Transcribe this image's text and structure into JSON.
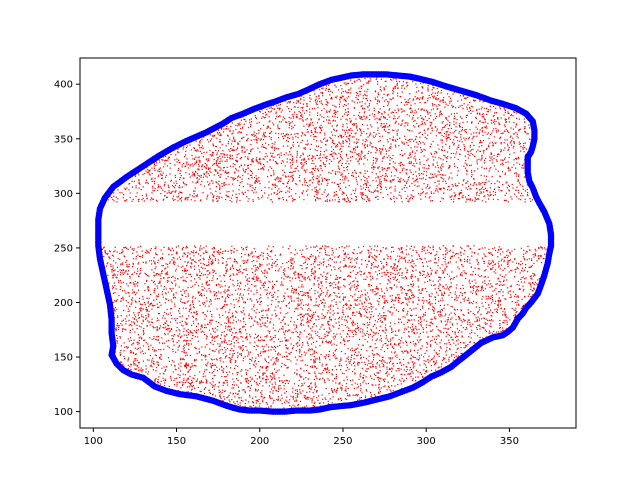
{
  "chart_data": {
    "type": "scatter",
    "title": "",
    "xlabel": "",
    "ylabel": "",
    "xlim": [
      92,
      390
    ],
    "ylim": [
      85,
      424
    ],
    "grid": false,
    "legend": "none",
    "x_ticks": [
      100,
      150,
      200,
      250,
      300,
      350
    ],
    "y_ticks": [
      100,
      150,
      200,
      250,
      300,
      350,
      400
    ],
    "x_tick_labels": [
      "100",
      "150",
      "200",
      "250",
      "300",
      "350"
    ],
    "y_tick_labels": [
      "100",
      "150",
      "200",
      "250",
      "300",
      "350",
      "400"
    ],
    "boundary_color": "#0000ff",
    "interior_color": "#ff0000",
    "empty_band_y": [
      252,
      292
    ],
    "boundary": [
      [
        112,
        160
      ],
      [
        111,
        152
      ],
      [
        114,
        144
      ],
      [
        118,
        138
      ],
      [
        123,
        134
      ],
      [
        130,
        131
      ],
      [
        137,
        123
      ],
      [
        144,
        119
      ],
      [
        152,
        116
      ],
      [
        162,
        114
      ],
      [
        167,
        112
      ],
      [
        172,
        110
      ],
      [
        179,
        106
      ],
      [
        183,
        104
      ],
      [
        188,
        102
      ],
      [
        194,
        101
      ],
      [
        200,
        101
      ],
      [
        208,
        100
      ],
      [
        215,
        100
      ],
      [
        222,
        101
      ],
      [
        230,
        101
      ],
      [
        236,
        102
      ],
      [
        242,
        104
      ],
      [
        248,
        105
      ],
      [
        255,
        106
      ],
      [
        262,
        108
      ],
      [
        270,
        111
      ],
      [
        278,
        114
      ],
      [
        285,
        118
      ],
      [
        292,
        122
      ],
      [
        298,
        127
      ],
      [
        303,
        132
      ],
      [
        309,
        136
      ],
      [
        315,
        141
      ],
      [
        319,
        146
      ],
      [
        324,
        152
      ],
      [
        333,
        163
      ],
      [
        340,
        168
      ],
      [
        346,
        170
      ],
      [
        349,
        173
      ],
      [
        352,
        177
      ],
      [
        355,
        185
      ],
      [
        358,
        190
      ],
      [
        360,
        195
      ],
      [
        363,
        200
      ],
      [
        367,
        208
      ],
      [
        369,
        216
      ],
      [
        371,
        225
      ],
      [
        373,
        236
      ],
      [
        374,
        245
      ],
      [
        375,
        252
      ],
      [
        375,
        262
      ],
      [
        374,
        272
      ],
      [
        371,
        283
      ],
      [
        368,
        291
      ],
      [
        366,
        297
      ],
      [
        364,
        305
      ],
      [
        362,
        311
      ],
      [
        361,
        319
      ],
      [
        361,
        328
      ],
      [
        361,
        333
      ],
      [
        363,
        338
      ],
      [
        364,
        343
      ],
      [
        365,
        350
      ],
      [
        365,
        358
      ],
      [
        364,
        366
      ],
      [
        360,
        373
      ],
      [
        354,
        378
      ],
      [
        346,
        382
      ],
      [
        339,
        385
      ],
      [
        330,
        390
      ],
      [
        321,
        394
      ],
      [
        312,
        398
      ],
      [
        304,
        402
      ],
      [
        296,
        405
      ],
      [
        290,
        407
      ],
      [
        283,
        408
      ],
      [
        276,
        409
      ],
      [
        270,
        409
      ],
      [
        262,
        409
      ],
      [
        255,
        408
      ],
      [
        249,
        406
      ],
      [
        243,
        404
      ],
      [
        236,
        400
      ],
      [
        229,
        395
      ],
      [
        223,
        391
      ],
      [
        216,
        388
      ],
      [
        209,
        384
      ],
      [
        203,
        381
      ],
      [
        196,
        377
      ],
      [
        190,
        373
      ],
      [
        183,
        369
      ],
      [
        178,
        364
      ],
      [
        173,
        360
      ],
      [
        168,
        356
      ],
      [
        162,
        352
      ],
      [
        156,
        348
      ],
      [
        148,
        342
      ],
      [
        139,
        334
      ],
      [
        130,
        325
      ],
      [
        120,
        315
      ],
      [
        112,
        306
      ],
      [
        107,
        296
      ],
      [
        104,
        286
      ],
      [
        103,
        276
      ],
      [
        103,
        264
      ],
      [
        103,
        252
      ],
      [
        104,
        240
      ],
      [
        106,
        226
      ],
      [
        108,
        212
      ],
      [
        110,
        198
      ],
      [
        111,
        184
      ],
      [
        111,
        172
      ],
      [
        112,
        160
      ]
    ]
  }
}
